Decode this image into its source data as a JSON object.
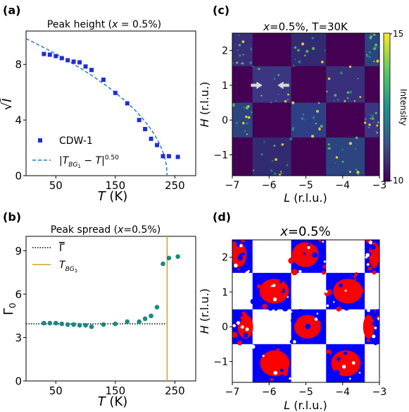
{
  "chart_data": [
    {
      "panel_label": "(a)",
      "type": "scatter",
      "title": "Peak height (x = 0.5%)",
      "title_parts": [
        "Peak height (",
        "x",
        " = 0.5%)"
      ],
      "xlabel": "T (K)",
      "xlabel_parts": [
        "T",
        " (K)"
      ],
      "ylabel": "√I",
      "ylabel_parts": [
        "√",
        "I"
      ],
      "xlim": [
        0,
        285
      ],
      "ylim": [
        0,
        10.4
      ],
      "xticks": [
        50,
        150,
        250
      ],
      "xtick_labels": [
        "50",
        "150",
        "250"
      ],
      "yticks": [
        0,
        4,
        8
      ],
      "ytick_labels": [
        "0",
        "4",
        "8"
      ],
      "legend_position": "bottom-left",
      "series": [
        {
          "name": "CDW-1",
          "kind": "points",
          "color": "#1f2ed6",
          "x": [
            30,
            40,
            50,
            60,
            70,
            80,
            90,
            100,
            110,
            130,
            150,
            170,
            190,
            200,
            210,
            220,
            230,
            240,
            255
          ],
          "y": [
            8.75,
            8.7,
            8.6,
            8.45,
            8.3,
            8.2,
            8.15,
            7.85,
            7.6,
            6.9,
            5.95,
            5.2,
            4.0,
            3.35,
            2.65,
            2.2,
            1.4,
            1.4,
            1.35
          ]
        },
        {
          "name": "|T_BG1 − T|^0.50",
          "label_parts": [
            "|T",
            "BG",
            "1",
            " − T|",
            "0.50"
          ],
          "kind": "fit-curve",
          "color": "#2a7bbd",
          "model": "A * sqrt(Tc - T)",
          "A": 0.64,
          "Tc": 237
        }
      ]
    },
    {
      "panel_label": "(b)",
      "type": "scatter",
      "title": "Peak spread (x=0.5%)",
      "title_parts": [
        "Peak spread (",
        "x",
        "=0.5%)"
      ],
      "xlabel": "T (K)",
      "xlabel_parts": [
        "T",
        " (K)"
      ],
      "ylabel": "Γ0",
      "ylabel_parts": [
        "Γ",
        "0"
      ],
      "xlim": [
        0,
        285
      ],
      "ylim": [
        0,
        10
      ],
      "xticks": [
        50,
        150,
        250
      ],
      "xtick_labels": [
        "50",
        "150",
        "250"
      ],
      "yticks": [
        0,
        3,
        6,
        9
      ],
      "ytick_labels": [
        "0",
        "3",
        "6",
        "9"
      ],
      "legend_position": "top-left",
      "points_color": "#1a8a80",
      "x": [
        30,
        40,
        50,
        60,
        70,
        80,
        90,
        100,
        110,
        130,
        150,
        170,
        190,
        200,
        210,
        220,
        230,
        240,
        255
      ],
      "y": [
        4.0,
        4.0,
        4.0,
        3.95,
        3.9,
        3.9,
        3.85,
        3.85,
        3.75,
        3.9,
        3.95,
        4.1,
        4.1,
        4.3,
        4.5,
        5.1,
        8.1,
        8.5,
        8.6
      ],
      "mean_line": {
        "name": "Γ̄",
        "label_parts": [
          "Γ",
          "—"
        ],
        "value": 3.95,
        "x_end": 237,
        "color": "#000000"
      },
      "transition_line": {
        "name": "T_BG1",
        "label_parts": [
          "T",
          "BG",
          "1"
        ],
        "value": 237,
        "color": "#d4a017"
      }
    },
    {
      "panel_label": "(c)",
      "type": "heatmap",
      "title": "x=0.5%, T=30K",
      "title_parts": [
        "x",
        "=0.5%, T=30K"
      ],
      "xlabel": "L (r.l.u.)",
      "xlabel_parts": [
        "L",
        " (r.l.u.)"
      ],
      "ylabel": "H (r.l.u.)",
      "ylabel_parts": [
        "H",
        " (r.l.u.)"
      ],
      "xlim": [
        -7,
        -3
      ],
      "ylim": [
        -1.6,
        2.5
      ],
      "xticks": [
        -7,
        -6,
        -5,
        -4,
        -3
      ],
      "xtick_labels": [
        "−7",
        "−6",
        "−5",
        "−4",
        "−3"
      ],
      "yticks": [
        -1,
        0,
        1,
        2
      ],
      "ytick_labels": [
        "−1",
        "0",
        "1",
        "2"
      ],
      "colorbar": {
        "label": "Intensity",
        "min_label": "10",
        "max_label": "15",
        "colormap": "viridis"
      },
      "arrows_at": [
        {
          "L": -6.3,
          "H": 1.0,
          "dir": "right"
        },
        {
          "L": -5.65,
          "H": 1.0,
          "dir": "left"
        }
      ]
    },
    {
      "panel_label": "(d)",
      "type": "heatmap",
      "title": "x=0.5%",
      "title_parts": [
        "x",
        "=0.5%"
      ],
      "xlabel": "L (r.l.u.)",
      "xlabel_parts": [
        "L",
        " (r.l.u.)"
      ],
      "ylabel": "H (r.l.u.)",
      "ylabel_parts": [
        "H",
        " (r.l.u.)"
      ],
      "xlim": [
        -7,
        -3
      ],
      "ylim": [
        -1.6,
        2.5
      ],
      "xticks": [
        -7,
        -6,
        -5,
        -4,
        -3
      ],
      "xtick_labels": [
        "−7",
        "−6",
        "−5",
        "−4",
        "−3"
      ],
      "yticks": [
        -1,
        0,
        1,
        2
      ],
      "ytick_labels": [
        "−1",
        "0",
        "1",
        "2"
      ],
      "colors": [
        "#ff0000",
        "#0000ff",
        "#ffffff"
      ]
    }
  ]
}
